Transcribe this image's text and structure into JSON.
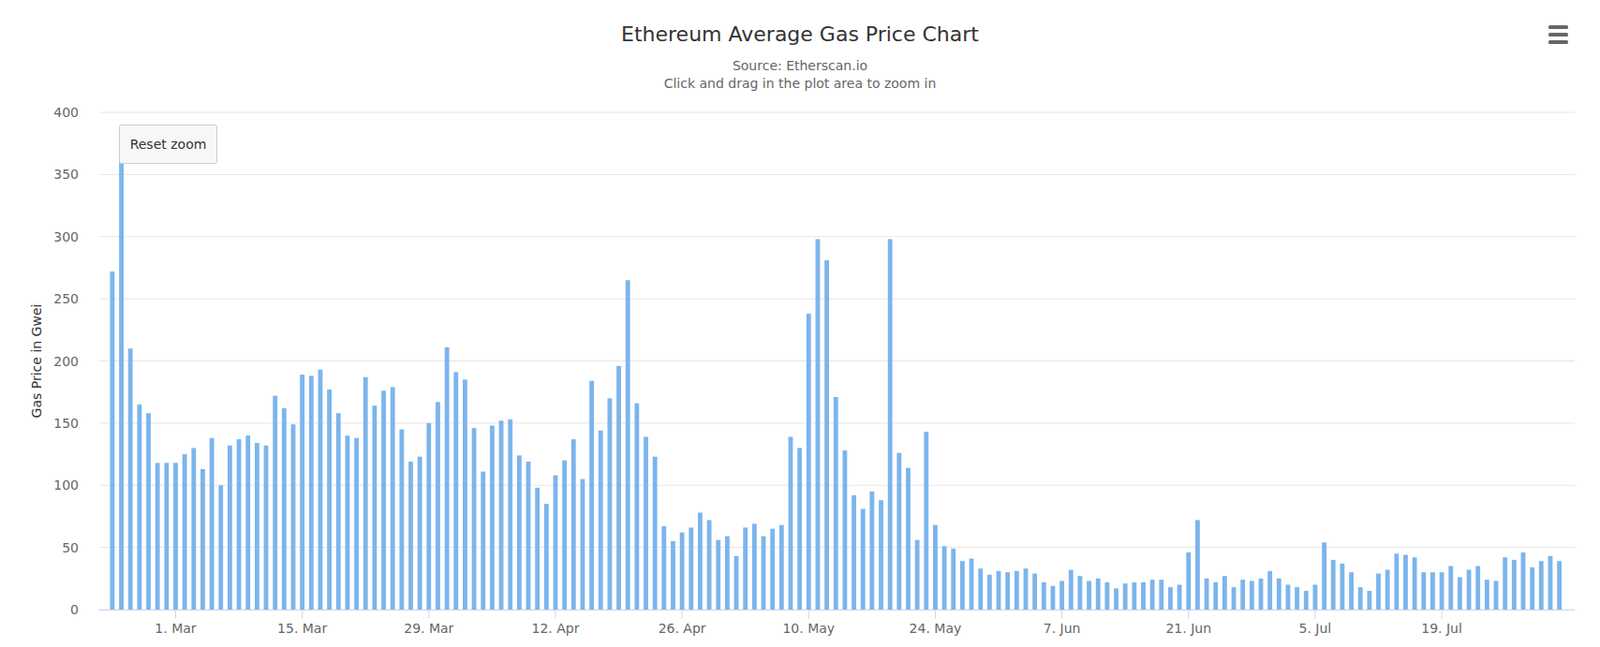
{
  "chart_data": {
    "type": "bar",
    "title": "Ethereum Average Gas Price Chart",
    "subtitle": [
      "Source: Etherscan.io",
      "Click and drag in the plot area to zoom in"
    ],
    "annotations": [
      "Reset zoom"
    ],
    "y_label": "Gas Price in Gwei",
    "categories": [
      null,
      null,
      null,
      null,
      null,
      null,
      null,
      "1. Mar",
      null,
      null,
      null,
      null,
      null,
      null,
      null,
      null,
      null,
      null,
      null,
      null,
      null,
      "15. Mar",
      null,
      null,
      null,
      null,
      null,
      null,
      null,
      null,
      null,
      null,
      null,
      null,
      null,
      "29. Mar",
      null,
      null,
      null,
      null,
      null,
      null,
      null,
      null,
      null,
      null,
      null,
      null,
      null,
      "12. Apr",
      null,
      null,
      null,
      null,
      null,
      null,
      null,
      null,
      null,
      null,
      null,
      null,
      null,
      "26. Apr",
      null,
      null,
      null,
      null,
      null,
      null,
      null,
      null,
      null,
      null,
      null,
      null,
      null,
      "10. May",
      null,
      null,
      null,
      null,
      null,
      null,
      null,
      null,
      null,
      null,
      null,
      null,
      null,
      "24. May",
      null,
      null,
      null,
      null,
      null,
      null,
      null,
      null,
      null,
      null,
      null,
      null,
      null,
      "7. Jun",
      null,
      null,
      null,
      null,
      null,
      null,
      null,
      null,
      null,
      null,
      null,
      null,
      null,
      "21. Jun",
      null,
      null,
      null,
      null,
      null,
      null,
      null,
      null,
      null,
      null,
      null,
      null,
      null,
      "5. Jul",
      null,
      null,
      null,
      null,
      null,
      null,
      null,
      null,
      null,
      null,
      null,
      null,
      null,
      "19. Jul",
      null,
      null,
      null,
      null,
      null,
      null,
      null,
      null,
      null,
      null,
      null,
      null,
      null
    ],
    "values": [
      272,
      362,
      210,
      165,
      158,
      118,
      118,
      118,
      125,
      130,
      113,
      138,
      100,
      132,
      137,
      140,
      134,
      132,
      172,
      162,
      149,
      189,
      188,
      193,
      177,
      158,
      140,
      138,
      187,
      164,
      176,
      179,
      145,
      119,
      123,
      150,
      167,
      211,
      191,
      185,
      146,
      111,
      148,
      152,
      153,
      124,
      119,
      98,
      85,
      108,
      120,
      137,
      105,
      184,
      144,
      170,
      196,
      265,
      166,
      139,
      123,
      67,
      55,
      62,
      66,
      78,
      72,
      56,
      59,
      43,
      66,
      69,
      59,
      65,
      68,
      139,
      130,
      238,
      298,
      281,
      171,
      128,
      92,
      81,
      95,
      88,
      298,
      126,
      114,
      56,
      143,
      68,
      51,
      49,
      39,
      41,
      33,
      28,
      31,
      30,
      31,
      33,
      29,
      22,
      19,
      23,
      32,
      27,
      23,
      25,
      22,
      17,
      21,
      22,
      22,
      24,
      24,
      18,
      20,
      46,
      72,
      25,
      22,
      27,
      18,
      24,
      23,
      25,
      31,
      25,
      20,
      18,
      15,
      20,
      54,
      40,
      37,
      30,
      18,
      15,
      29,
      32,
      45,
      44,
      42,
      30,
      30,
      30,
      35,
      26,
      32,
      35,
      24,
      23,
      42,
      40,
      46,
      34,
      39,
      43,
      39
    ],
    "color": "#7cb5ec",
    "ylim": [
      0,
      400
    ],
    "yticks": [
      0,
      50,
      100,
      150,
      200,
      250,
      300,
      350,
      400
    ],
    "grid": true
  }
}
